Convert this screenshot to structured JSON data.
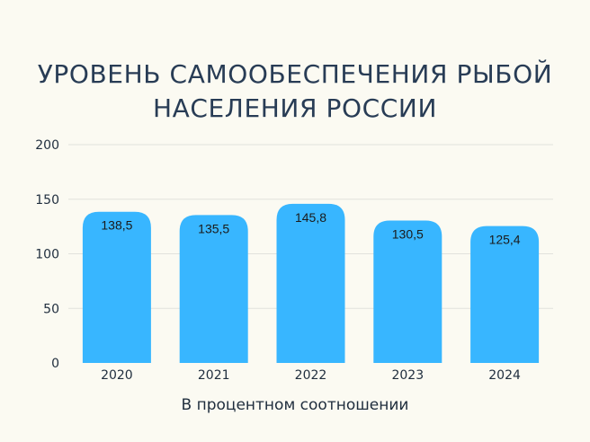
{
  "title_lines": [
    "УРОВЕНЬ САМООБЕСПЕЧЕНИЯ РЫБОЙ",
    "НАСЕЛЕНИЯ РОССИИ"
  ],
  "caption": "В процентном соотношении",
  "colors": {
    "background": "#fbfaf2",
    "bar": "#38b6ff",
    "title": "#283c55",
    "grid": "#e2e2dc",
    "text": "#1f2d3d"
  },
  "chart_data": {
    "type": "bar",
    "title": "УРОВЕНЬ САМООБЕСПЕЧЕНИЯ РЫБОЙ НАСЕЛЕНИЯ РОССИИ",
    "xlabel": "В процентном соотношении",
    "ylabel": "",
    "categories": [
      "2020",
      "2021",
      "2022",
      "2023",
      "2024"
    ],
    "values": [
      138.5,
      135.5,
      145.8,
      130.5,
      125.4
    ],
    "value_labels": [
      "138,5",
      "135,5",
      "145,8",
      "130,5",
      "125,4"
    ],
    "ylim": [
      0,
      200
    ],
    "yticks": [
      "0",
      "50",
      "100",
      "150",
      "200"
    ],
    "grid": true,
    "legend": "none"
  }
}
